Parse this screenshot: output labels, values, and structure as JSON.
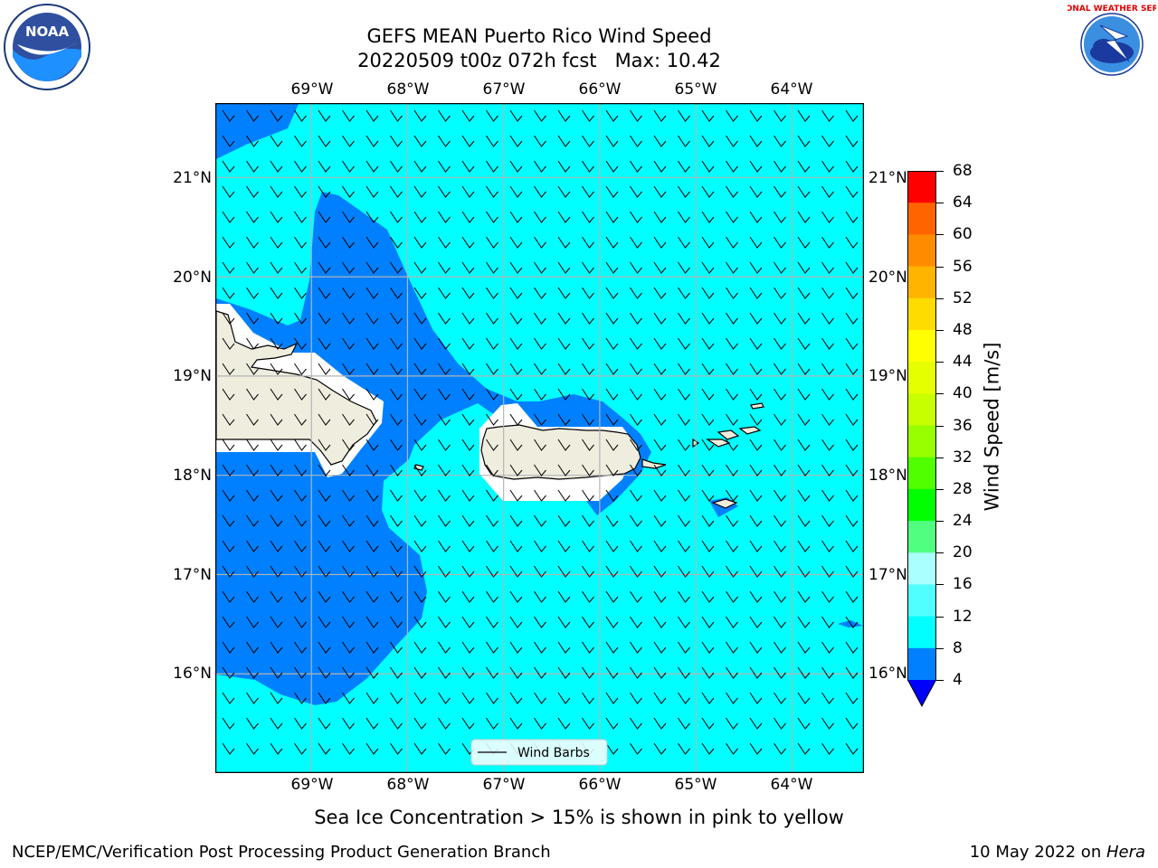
{
  "header": {
    "title_line1": "GEFS MEAN Puerto Rico Wind Speed",
    "title_line2": "20220509 t00z 072h fcst   Max: 10.42"
  },
  "logos": {
    "left": {
      "icon": "noaa-logo-icon",
      "text": "NOAA"
    },
    "right": {
      "icon": "nws-logo-icon",
      "text": "NATIONAL WEATHER SERVICE"
    }
  },
  "map": {
    "lon_labels": [
      "69°W",
      "68°W",
      "67°W",
      "66°W",
      "65°W",
      "64°W"
    ],
    "lat_labels": [
      "21°N",
      "20°N",
      "19°N",
      "18°N",
      "17°N",
      "16°N"
    ],
    "lon_values": [
      -69,
      -68,
      -67,
      -66,
      -65,
      -64
    ],
    "lat_values": [
      21,
      20,
      19,
      18,
      17,
      16
    ],
    "extent": {
      "lon_min": -70,
      "lon_max": -63.25,
      "lat_min": 15,
      "lat_max": 21.75
    },
    "colors": {
      "land": "#efedde",
      "ocean_cyan": "#00ffff",
      "ocean_blue": "#0080ff",
      "grid": "#b4b4b4"
    },
    "legend_label": "Wind Barbs"
  },
  "colorbar": {
    "label": "Wind Speed [m/s]",
    "ticks": [
      "68",
      "64",
      "60",
      "56",
      "52",
      "48",
      "44",
      "40",
      "36",
      "32",
      "28",
      "24",
      "20",
      "16",
      "12",
      "8",
      "4"
    ],
    "colors": [
      "#ff0000",
      "#ff3200",
      "#ff6400",
      "#ff8c00",
      "#ffb400",
      "#ffdc00",
      "#ffff00",
      "#e6ff00",
      "#c8ff00",
      "#96ff00",
      "#50ff00",
      "#00ff00",
      "#50ff80",
      "#aaffff",
      "#50ffff",
      "#00ffff",
      "#0080ff"
    ],
    "extend_color": "#0000ff"
  },
  "notes": {
    "sea_ice": "Sea Ice Concentration > 15% is shown in pink to yellow"
  },
  "footer": {
    "left": "NCEP/EMC/Verification Post Processing Product Generation Branch",
    "date": "10 May 2022 on ",
    "machine": "Hera"
  }
}
